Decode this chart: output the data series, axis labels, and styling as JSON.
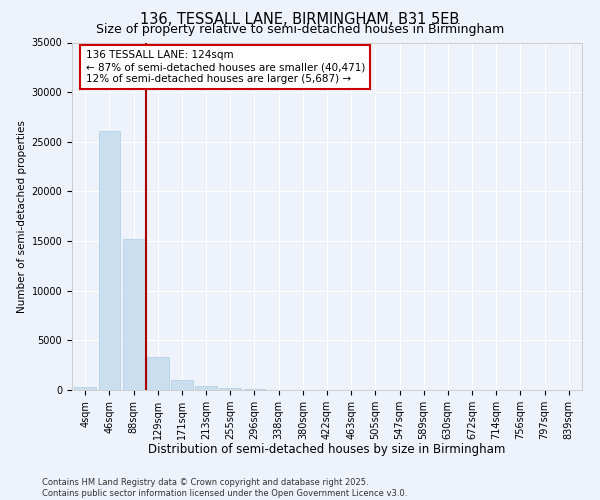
{
  "title": "136, TESSALL LANE, BIRMINGHAM, B31 5EB",
  "subtitle": "Size of property relative to semi-detached houses in Birmingham",
  "xlabel": "Distribution of semi-detached houses by size in Birmingham",
  "ylabel": "Number of semi-detached properties",
  "categories": [
    "4sqm",
    "46sqm",
    "88sqm",
    "129sqm",
    "171sqm",
    "213sqm",
    "255sqm",
    "296sqm",
    "338sqm",
    "380sqm",
    "422sqm",
    "463sqm",
    "505sqm",
    "547sqm",
    "589sqm",
    "630sqm",
    "672sqm",
    "714sqm",
    "756sqm",
    "797sqm",
    "839sqm"
  ],
  "values": [
    350,
    26100,
    15200,
    3350,
    1050,
    450,
    200,
    80,
    0,
    0,
    0,
    0,
    0,
    0,
    0,
    0,
    0,
    0,
    0,
    0,
    0
  ],
  "bar_color": "#c9dff0",
  "bar_edgecolor": "#b0cce0",
  "bg_color": "#eef2fa",
  "grid_color": "#ffffff",
  "vline_index": 3,
  "vline_color": "#aa0000",
  "annotation_text": "136 TESSALL LANE: 124sqm\n← 87% of semi-detached houses are smaller (40,471)\n12% of semi-detached houses are larger (5,687) →",
  "annotation_box_facecolor": "#ffffff",
  "annotation_box_edgecolor": "#cc0000",
  "ylim": [
    0,
    35000
  ],
  "yticks": [
    0,
    5000,
    10000,
    15000,
    20000,
    25000,
    30000,
    35000
  ],
  "footer": "Contains HM Land Registry data © Crown copyright and database right 2025.\nContains public sector information licensed under the Open Government Licence v3.0.",
  "title_fontsize": 10.5,
  "subtitle_fontsize": 9,
  "xlabel_fontsize": 8.5,
  "ylabel_fontsize": 7.5,
  "tick_fontsize": 7,
  "annot_fontsize": 7.5,
  "footer_fontsize": 6
}
